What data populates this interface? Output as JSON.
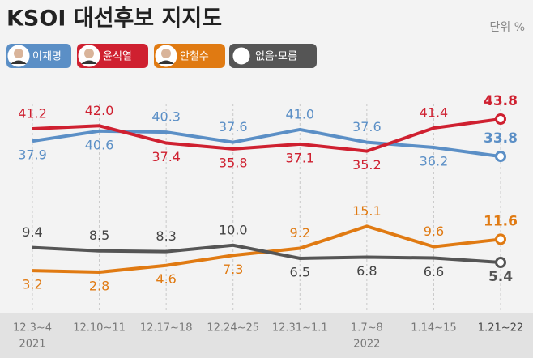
{
  "chart_data": {
    "type": "line",
    "title": "KSOI 대선후보 지지도",
    "unit": "단위 %",
    "categories": [
      "12.3~4",
      "12.10~11",
      "12.17~18",
      "12.24~25",
      "12.31~1.1",
      "1.7~8",
      "1.14~15",
      "1.21~22"
    ],
    "year_labels": [
      "2021",
      null,
      null,
      null,
      null,
      "2022",
      null,
      null
    ],
    "series": [
      {
        "name": "이재명",
        "color": "#5b8fc6",
        "values": [
          37.9,
          40.6,
          40.3,
          37.6,
          41.0,
          37.6,
          36.2,
          33.8
        ],
        "value_labels": [
          "37.9",
          "40.6",
          "40.3",
          "37.6",
          "41.0",
          "37.6",
          "36.2",
          "33.8"
        ]
      },
      {
        "name": "윤석열",
        "color": "#cf2030",
        "values": [
          41.2,
          42.0,
          37.4,
          35.8,
          37.1,
          35.2,
          41.4,
          43.8
        ],
        "value_labels": [
          "41.2",
          "42.0",
          "37.4",
          "35.8",
          "37.1",
          "35.2",
          "41.4",
          "43.8"
        ]
      },
      {
        "name": "안철수",
        "color": "#e07a12",
        "values": [
          3.2,
          2.8,
          4.6,
          7.3,
          9.2,
          15.1,
          9.6,
          11.6
        ],
        "value_labels": [
          "3.2",
          "2.8",
          "4.6",
          "7.3",
          "9.2",
          "15.1",
          "9.6",
          "11.6"
        ]
      },
      {
        "name": "없음·모름",
        "color": "#555555",
        "values": [
          9.4,
          8.5,
          8.3,
          10.0,
          6.5,
          6.8,
          6.6,
          5.4
        ],
        "value_labels": [
          "9.4",
          "8.5",
          "8.3",
          "10.0",
          "6.5",
          "6.8",
          "6.6",
          "5.4"
        ]
      }
    ]
  }
}
